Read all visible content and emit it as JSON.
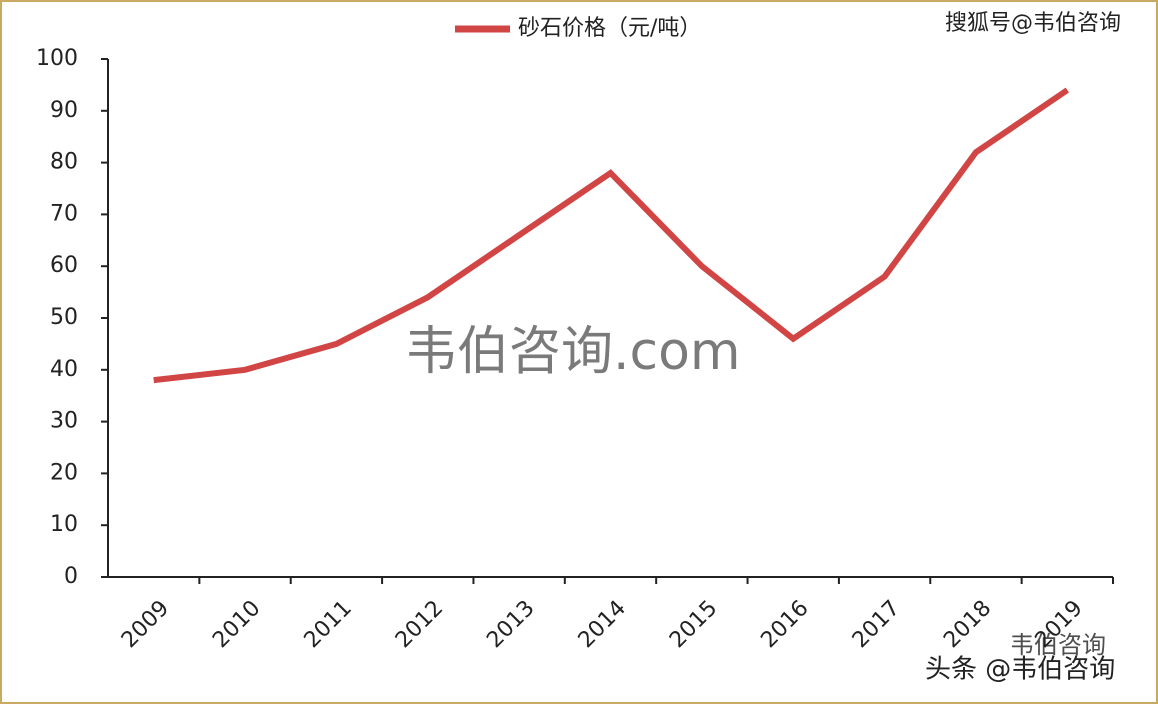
{
  "chart_data": {
    "type": "line",
    "categories": [
      "2009",
      "2010",
      "2011",
      "2012",
      "2013",
      "2014",
      "2015",
      "2016",
      "2017",
      "2018",
      "2019"
    ],
    "series": [
      {
        "name": "砂石价格（元/吨）",
        "color": "#d24545",
        "values": [
          38,
          40,
          45,
          54,
          66,
          78,
          60,
          46,
          58,
          82,
          94
        ]
      }
    ],
    "ylim": [
      0,
      100
    ],
    "yticks": [
      0,
      10,
      20,
      30,
      40,
      50,
      60,
      70,
      80,
      90,
      100
    ],
    "grid": false,
    "legend": "top",
    "watermarks": [
      "搜狐号@韦伯咨询",
      "韦伯咨询.com",
      "韦伯咨询",
      "头条 @韦伯咨询"
    ]
  }
}
